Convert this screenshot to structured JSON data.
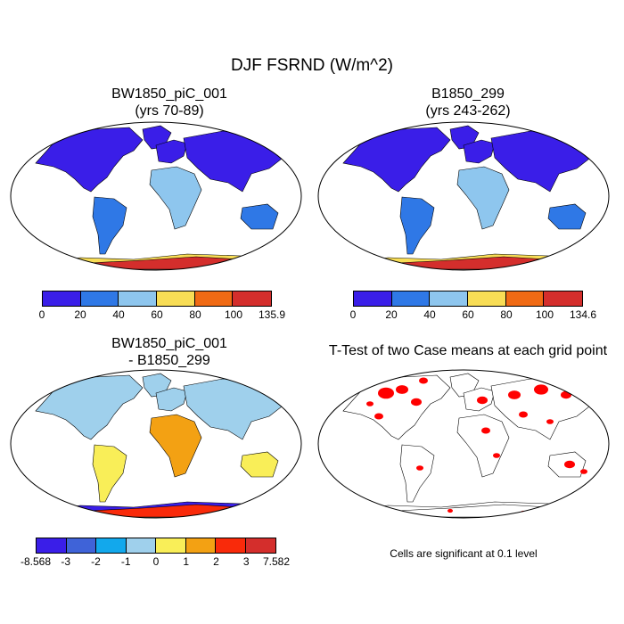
{
  "main_title": "DJF FSRND (W/m^2)",
  "chart_data": [
    {
      "type": "heatmap",
      "title_line1": "BW1850_piC_001",
      "title_line2": "(yrs 70-89)",
      "colorbar": {
        "labels": [
          "0",
          "20",
          "40",
          "60",
          "80",
          "100",
          "135.9"
        ],
        "colors": [
          "#3a1ee8",
          "#2f78e6",
          "#8ec6ee",
          "#f8dd55",
          "#f06a14",
          "#d42e2c"
        ]
      },
      "palette": {
        "ocean": "#ffffff",
        "polar": "#3a1ee8",
        "temperate": "#3a1ee8",
        "tropics": "#2f78e6",
        "desert": "#8ec6ee",
        "antarctic": "#d42e2c",
        "antarctic_edge": "#f8dd55"
      }
    },
    {
      "type": "heatmap",
      "title_line1": "B1850_299",
      "title_line2": "(yrs 243-262)",
      "colorbar": {
        "labels": [
          "0",
          "20",
          "40",
          "60",
          "80",
          "100",
          "134.6"
        ],
        "colors": [
          "#3a1ee8",
          "#2f78e6",
          "#8ec6ee",
          "#f8dd55",
          "#f06a14",
          "#d42e2c"
        ]
      },
      "palette": {
        "ocean": "#ffffff",
        "polar": "#3a1ee8",
        "temperate": "#3a1ee8",
        "tropics": "#2f78e6",
        "desert": "#8ec6ee",
        "antarctic": "#d42e2c",
        "antarctic_edge": "#f8dd55"
      }
    },
    {
      "type": "heatmap",
      "title_line1": "BW1850_piC_001",
      "title_line2": "- B1850_299",
      "colorbar": {
        "labels": [
          "-8.568",
          "-3",
          "-2",
          "-1",
          "0",
          "1",
          "2",
          "3",
          "7.582"
        ],
        "colors": [
          "#3a1ee8",
          "#3f63d8",
          "#12a8ec",
          "#9fd0ec",
          "#f9ee58",
          "#f3a113",
          "#f92a0a",
          "#d42e2c"
        ]
      },
      "palette": {
        "ocean": "#ffffff",
        "polar": "#9fd0ec",
        "temperate": "#9fd0ec",
        "tropics": "#f9ee58",
        "desert": "#f3a113",
        "antarctic": "#f92a0a",
        "antarctic_edge": "#3a1ee8"
      }
    },
    {
      "type": "heatmap",
      "title_line1": "T-Test of two Case means at each grid point",
      "title_line2": "",
      "note": "Cells are significant at 0.1 level",
      "palette": {
        "ocean": "#ffffff",
        "signif": "#ff0000"
      }
    }
  ]
}
